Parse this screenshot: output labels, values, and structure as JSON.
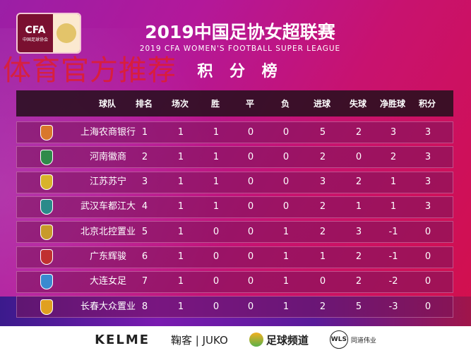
{
  "watermark": "体育官方推荐",
  "logo": {
    "text": "CFA",
    "sub": "中国足球协会"
  },
  "title": "2019中国足协女超联赛",
  "subtitle": "2019 CFA WOMEN'S FOOTBALL SUPER LEAGUE",
  "table_title": "积 分 榜",
  "columns": [
    "球队",
    "排名",
    "场次",
    "胜",
    "平",
    "负",
    "进球",
    "失球",
    "净胜球",
    "积分"
  ],
  "rows": [
    {
      "team": "上海农商银行",
      "crest": "#d9772b",
      "v": [
        "1",
        "1",
        "1",
        "0",
        "0",
        "5",
        "2",
        "3",
        "3"
      ]
    },
    {
      "team": "河南徽商",
      "crest": "#2f8a4a",
      "v": [
        "2",
        "1",
        "1",
        "0",
        "0",
        "2",
        "0",
        "2",
        "3"
      ]
    },
    {
      "team": "江苏苏宁",
      "crest": "#d8b32a",
      "v": [
        "3",
        "1",
        "1",
        "0",
        "0",
        "3",
        "2",
        "1",
        "3"
      ]
    },
    {
      "team": "武汉车都江大",
      "crest": "#2a8a8a",
      "v": [
        "4",
        "1",
        "1",
        "0",
        "0",
        "2",
        "1",
        "1",
        "3"
      ]
    },
    {
      "team": "北京北控置业",
      "crest": "#c89a2a",
      "v": [
        "5",
        "1",
        "0",
        "0",
        "1",
        "2",
        "3",
        "-1",
        "0"
      ]
    },
    {
      "team": "广东辉骏",
      "crest": "#c03030",
      "v": [
        "6",
        "1",
        "0",
        "0",
        "1",
        "1",
        "2",
        "-1",
        "0"
      ]
    },
    {
      "team": "大连女足",
      "crest": "#3a8ad0",
      "v": [
        "7",
        "1",
        "0",
        "0",
        "1",
        "0",
        "2",
        "-2",
        "0"
      ]
    },
    {
      "team": "长春大众置业",
      "crest": "#e0a020",
      "v": [
        "8",
        "1",
        "0",
        "0",
        "1",
        "2",
        "5",
        "-3",
        "0"
      ]
    }
  ],
  "sponsors": {
    "kelme": "KELME",
    "juko": "鞠客 | JUKO",
    "ftv": "足球频道",
    "wls": "WLS",
    "wls_sub": "同道伟业"
  }
}
